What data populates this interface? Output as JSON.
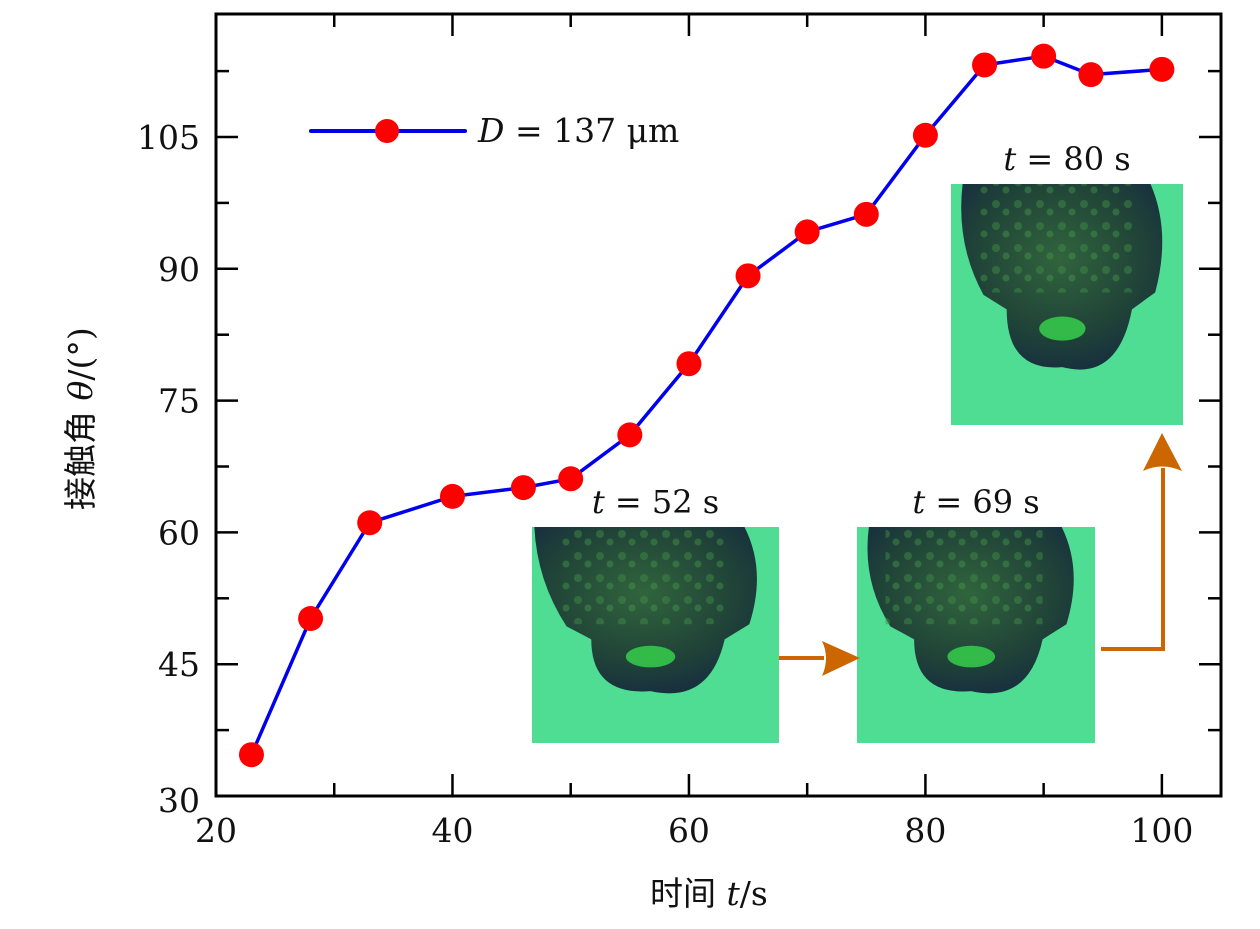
{
  "chart_data": {
    "type": "line",
    "title": "",
    "xlabel": "时间 t/s",
    "xlabel_parts": {
      "prefix": "时间 ",
      "var": "t",
      "suffix": "/s"
    },
    "ylabel": "接触角 θ/(°)",
    "ylabel_parts": {
      "prefix": "接触角 ",
      "var": "θ",
      "suffix": "/(°)"
    },
    "xlim": [
      20,
      105
    ],
    "ylim": [
      30,
      119
    ],
    "xticks": [
      20,
      40,
      60,
      80,
      100
    ],
    "xtick_labels": [
      "20",
      "40",
      "60",
      "80",
      "100"
    ],
    "x_minor_ticks": [
      30,
      50,
      70,
      90
    ],
    "yticks": [
      30,
      45,
      60,
      75,
      90,
      105
    ],
    "ytick_labels": [
      "30",
      "45",
      "60",
      "75",
      "90",
      "105"
    ],
    "y_minor_ticks": [
      37.5,
      52.5,
      67.5,
      82.5,
      97.5,
      112.5
    ],
    "grid": false,
    "legend": {
      "placement": "top-left",
      "entries": [
        "D = 137 μm"
      ]
    },
    "legend_parts": {
      "var": "D",
      "eq": " = 137 μm"
    },
    "series": [
      {
        "name": "D = 137 μm",
        "line_color": "#0000ee",
        "marker_color": "#ff0000",
        "x": [
          23,
          28,
          33,
          40,
          46,
          50,
          55,
          60,
          65,
          70,
          75,
          80,
          85,
          90,
          94,
          100
        ],
        "y": [
          34.7,
          50.2,
          61.1,
          64.1,
          65.1,
          66.1,
          71.1,
          79.2,
          89.2,
          94.2,
          96.2,
          105.2,
          113.2,
          114.2,
          112.1,
          112.7
        ]
      }
    ],
    "annotations": [
      {
        "type": "inset-image",
        "label": "t = 52 s",
        "label_var": "t",
        "label_eq": " = 52 s",
        "description": "droplet micrograph at t = 52 s"
      },
      {
        "type": "inset-image",
        "label": "t = 69 s",
        "label_var": "t",
        "label_eq": " = 69 s",
        "description": "droplet micrograph at t = 69 s"
      },
      {
        "type": "inset-image",
        "label": "t = 80 s",
        "label_var": "t",
        "label_eq": " = 80 s",
        "description": "droplet micrograph at t = 80 s"
      },
      {
        "type": "arrow",
        "from": "t = 52 s",
        "to": "t = 69 s",
        "color": "#cc6600"
      },
      {
        "type": "arrow",
        "from": "t = 69 s",
        "to": "t = 80 s",
        "color": "#cc6600"
      }
    ]
  },
  "colors": {
    "inset_background": "#4fdc93",
    "droplet_dark": "#1a2e3a",
    "droplet_texture": "#2f6a3a",
    "highlight": "#39e24d",
    "arrow": "#cc6600"
  }
}
